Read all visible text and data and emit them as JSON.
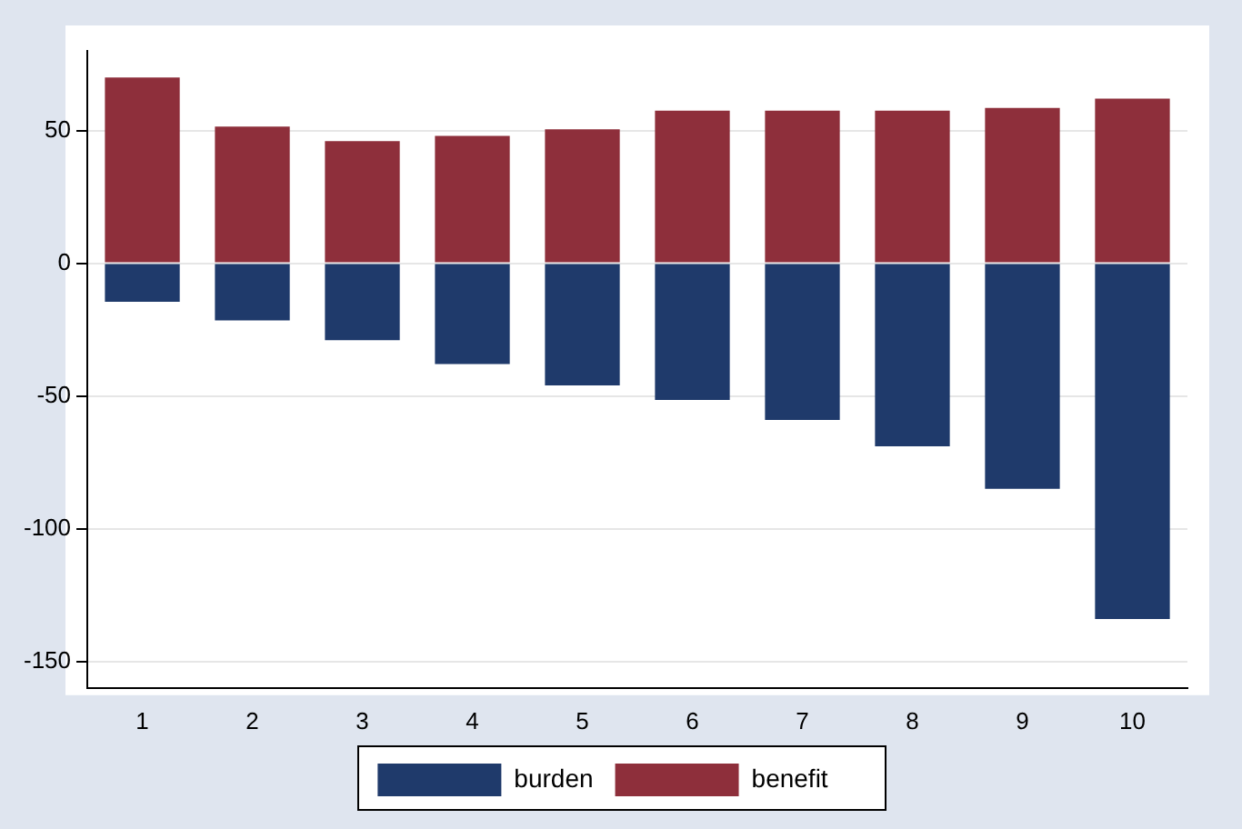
{
  "chart_data": {
    "type": "bar",
    "stacked": true,
    "categories": [
      "1",
      "2",
      "3",
      "4",
      "5",
      "6",
      "7",
      "8",
      "9",
      "10"
    ],
    "series": [
      {
        "name": "burden",
        "color": "#1f3a6b",
        "values": [
          -14.5,
          -21.5,
          -29,
          -38,
          -46,
          -51.5,
          -59,
          -69,
          -85,
          -134
        ]
      },
      {
        "name": "benefit",
        "color": "#8e2f3b",
        "values": [
          70,
          51.5,
          46,
          48,
          50.5,
          57.5,
          57.5,
          57.5,
          58.5,
          62
        ]
      }
    ],
    "ylim": [
      -160,
      80
    ],
    "yticks": [
      -150,
      -100,
      -50,
      0,
      50
    ],
    "grid": "y",
    "legend": "bottom"
  }
}
